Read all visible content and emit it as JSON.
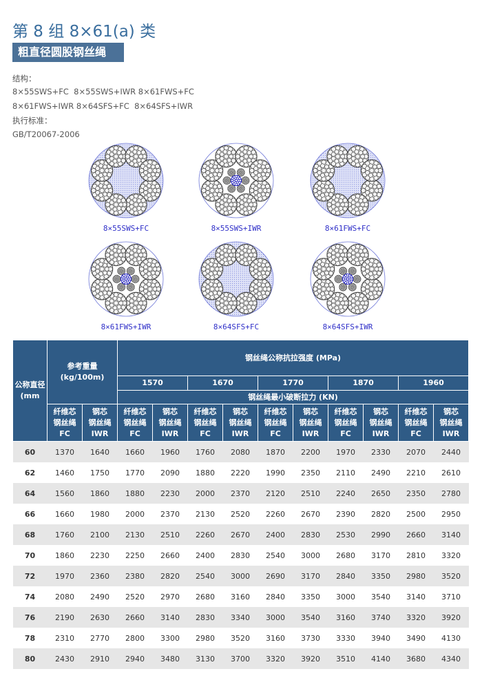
{
  "header": {
    "title": "第 8 组 8×61(a) 类",
    "badge": "粗直径圆股钢丝绳"
  },
  "info": {
    "structure_label": "结构：",
    "structure_lines": [
      "8×55SWS+FC  8×55SWS+IWR 8×61FWS+FC",
      "8×61FWS+IWR 8×64SFS+FC  8×64SFS+IWR"
    ],
    "standard_label": "执行标准：",
    "standard": "GB/T20067-2006"
  },
  "diagrams": [
    {
      "caption": "8×55SWS+FC"
    },
    {
      "caption": "8×55SWS+IWR"
    },
    {
      "caption": "8×61FWS+FC"
    },
    {
      "caption": "8×61FWS+IWR"
    },
    {
      "caption": "8×64SFS+FC"
    },
    {
      "caption": "8×64SFS+IWR"
    }
  ],
  "table": {
    "header": {
      "diameter": "公称直径 (mm",
      "weight": "参考重量 (kg/100m)",
      "strength": "钢丝绳公称抗拉强度 (MPa)",
      "grades": [
        "1570",
        "1670",
        "1770",
        "1870",
        "1960"
      ],
      "force": "钢丝绳最小破断拉力 (KN)"
    },
    "sub_headers": [
      [
        "纤维芯",
        "钢丝绳",
        "FC"
      ],
      [
        "钢芯",
        "钢丝绳",
        "IWR"
      ],
      [
        "纤维芯",
        "钢丝绳",
        "FC"
      ],
      [
        "钢芯",
        "钢丝绳",
        "IWR"
      ],
      [
        "纤维芯",
        "钢丝绳",
        "FC"
      ],
      [
        "钢芯",
        "钢丝绳",
        "IWR"
      ],
      [
        "纤维芯",
        "钢丝绳",
        "FC"
      ],
      [
        "钢芯",
        "钢丝绳",
        "IWR"
      ],
      [
        "纤维芯",
        "钢丝绳",
        "FC"
      ],
      [
        "钢芯",
        "钢丝绳",
        "IWR"
      ],
      [
        "纤维芯",
        "钢丝绳",
        "FC"
      ],
      [
        "钢芯",
        "钢丝绳",
        "IWR"
      ]
    ],
    "rows": [
      [
        "60",
        "1370",
        "1640",
        "1660",
        "1960",
        "1760",
        "2080",
        "1870",
        "2200",
        "1970",
        "2330",
        "2070",
        "2440"
      ],
      [
        "62",
        "1460",
        "1750",
        "1770",
        "2090",
        "1880",
        "2220",
        "1990",
        "2350",
        "2110",
        "2490",
        "2210",
        "2610"
      ],
      [
        "64",
        "1560",
        "1860",
        "1880",
        "2230",
        "2000",
        "2370",
        "2120",
        "2510",
        "2240",
        "2650",
        "2350",
        "2780"
      ],
      [
        "66",
        "1660",
        "1980",
        "2000",
        "2370",
        "2130",
        "2520",
        "2260",
        "2670",
        "2390",
        "2820",
        "2500",
        "2950"
      ],
      [
        "68",
        "1760",
        "2100",
        "2130",
        "2510",
        "2260",
        "2670",
        "2400",
        "2830",
        "2530",
        "2990",
        "2660",
        "3140"
      ],
      [
        "70",
        "1860",
        "2230",
        "2250",
        "2660",
        "2400",
        "2830",
        "2540",
        "3000",
        "2680",
        "3170",
        "2810",
        "3320"
      ],
      [
        "72",
        "1970",
        "2360",
        "2380",
        "2820",
        "2540",
        "3000",
        "2690",
        "3170",
        "2840",
        "3350",
        "2980",
        "3520"
      ],
      [
        "74",
        "2080",
        "2490",
        "2520",
        "2970",
        "2680",
        "3160",
        "2840",
        "3350",
        "3000",
        "3540",
        "3140",
        "3710"
      ],
      [
        "76",
        "2190",
        "2630",
        "2660",
        "3140",
        "2830",
        "3340",
        "3000",
        "3540",
        "3160",
        "3740",
        "3320",
        "3920"
      ],
      [
        "78",
        "2310",
        "2770",
        "2800",
        "3300",
        "2980",
        "3520",
        "3160",
        "3730",
        "3330",
        "3940",
        "3490",
        "4130"
      ],
      [
        "80",
        "2430",
        "2910",
        "2940",
        "3480",
        "3130",
        "3700",
        "3320",
        "3920",
        "3510",
        "4140",
        "3680",
        "4340"
      ]
    ]
  }
}
